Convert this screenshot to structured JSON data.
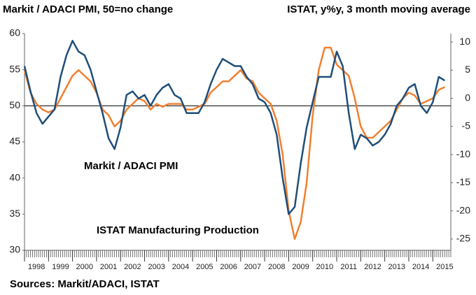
{
  "chart_data": {
    "type": "line",
    "title": "Markit / ADACI PMI, 50=no change",
    "subtitle": "ISTAT, y%y, 3 month moving average",
    "source": "Sources: Markit/ADACI, ISTAT",
    "x": [
      1998,
      1998.25,
      1998.5,
      1998.75,
      1999,
      1999.25,
      1999.5,
      1999.75,
      2000,
      2000.25,
      2000.5,
      2000.75,
      2001,
      2001.25,
      2001.5,
      2001.75,
      2002,
      2002.25,
      2002.5,
      2002.75,
      2003,
      2003.25,
      2003.5,
      2003.75,
      2004,
      2004.25,
      2004.5,
      2004.75,
      2005,
      2005.25,
      2005.5,
      2005.75,
      2006,
      2006.25,
      2006.5,
      2006.75,
      2007,
      2007.25,
      2007.5,
      2007.75,
      2008,
      2008.25,
      2008.5,
      2008.75,
      2009,
      2009.25,
      2009.5,
      2009.75,
      2010,
      2010.25,
      2010.5,
      2010.75,
      2011,
      2011.25,
      2011.5,
      2011.75,
      2012,
      2012.25,
      2012.5,
      2012.75,
      2013,
      2013.25,
      2013.5,
      2013.75,
      2014,
      2014.25,
      2014.5,
      2014.75,
      2015,
      2015.25,
      2015.5
    ],
    "series": [
      {
        "name": "Markit / ADACI PMI",
        "color": "#1f4e79",
        "values": [
          55.5,
          52,
          49,
          47.5,
          48.5,
          49.5,
          54,
          57,
          59,
          57.5,
          57,
          55,
          52,
          49,
          45.5,
          44,
          47,
          51.5,
          52,
          51,
          51.5,
          50,
          51.5,
          52.5,
          53,
          51.5,
          51,
          49,
          49,
          49,
          50.5,
          53,
          55,
          56.5,
          56,
          55.5,
          55.5,
          54,
          53,
          51,
          50.5,
          49,
          46,
          40,
          35,
          36,
          42,
          47,
          50.5,
          54,
          54,
          54,
          57.5,
          55.5,
          49,
          44,
          46,
          45.5,
          44.5,
          45,
          46,
          47.5,
          50,
          51,
          52.5,
          53,
          50,
          49,
          50.5,
          54,
          53.5
        ]
      },
      {
        "name": "ISTAT Manufacturing Production",
        "color": "#f08030",
        "axis": "y2",
        "values": [
          5,
          1,
          -1,
          -2,
          -2.5,
          -2,
          0,
          2,
          4,
          5,
          4,
          3,
          1,
          -2,
          -3,
          -5,
          -4,
          -2,
          -1,
          0,
          -0.5,
          -2,
          -1,
          -1.5,
          -1,
          -1,
          -1,
          -2,
          -2,
          -1.5,
          -1,
          1,
          2,
          3,
          3,
          4,
          5,
          3.5,
          3,
          1,
          0,
          -1,
          -4,
          -10,
          -20,
          -25,
          -22,
          -15,
          -3,
          5,
          9,
          9,
          6,
          5,
          4,
          0,
          -5,
          -7,
          -7,
          -6,
          -5,
          -4,
          -2,
          0,
          1,
          0.5,
          -1,
          -0.5,
          0,
          1.5,
          2
        ]
      }
    ],
    "reference_line": 50,
    "xlim": [
      1998,
      2015.75
    ],
    "xticks": [
      1998,
      1999,
      2000,
      2001,
      2002,
      2003,
      2004,
      2005,
      2006,
      2007,
      2008,
      2009,
      2010,
      2011,
      2012,
      2013,
      2014,
      2015
    ],
    "ylim": [
      30,
      60
    ],
    "yticks": [
      30,
      35,
      40,
      45,
      50,
      55,
      60
    ],
    "y2lim": [
      -27,
      11.5
    ],
    "y2ticks": [
      -25,
      -20,
      -15,
      -10,
      -5,
      0,
      5,
      10
    ],
    "grid": false
  }
}
